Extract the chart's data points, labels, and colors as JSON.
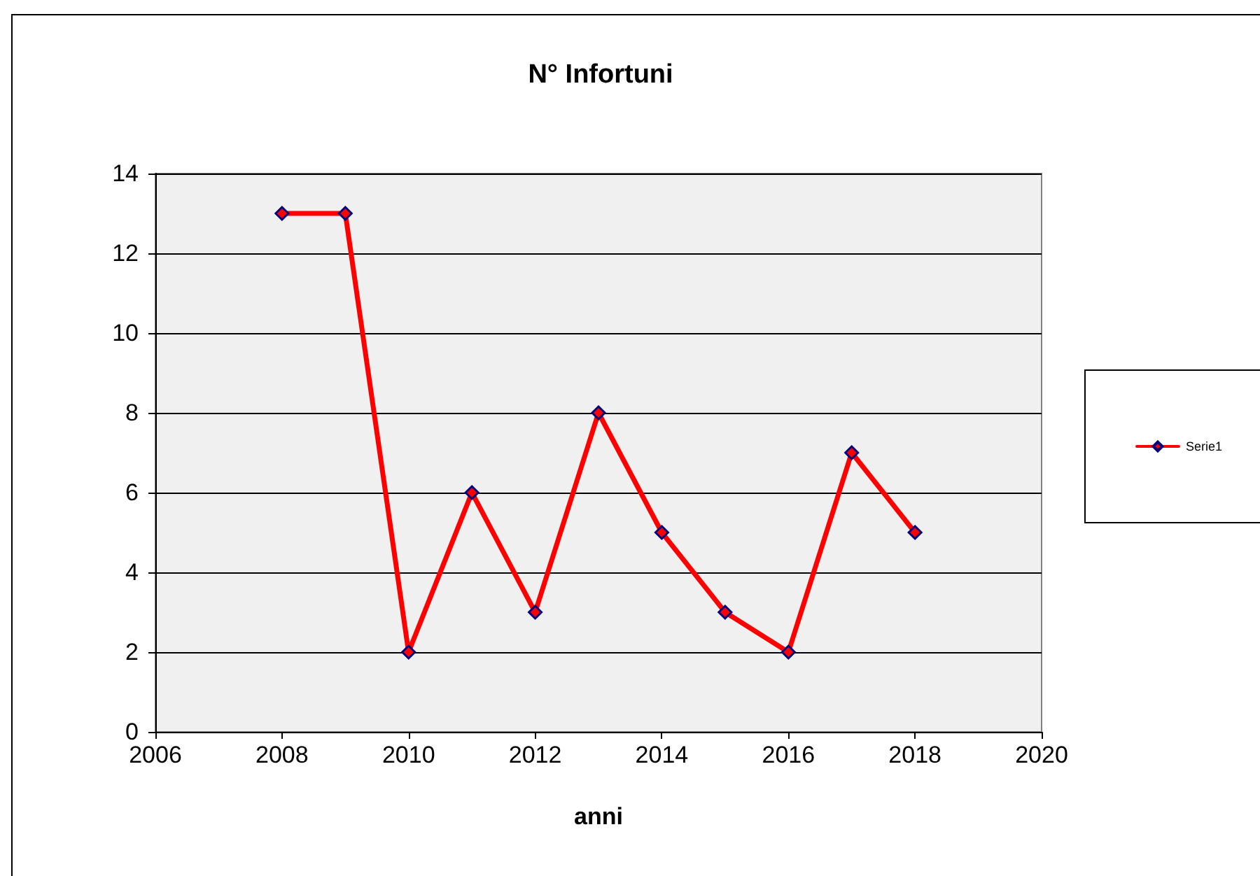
{
  "chart_data": {
    "type": "line",
    "title": "N° Infortuni",
    "xlabel": "anni",
    "x": [
      2008,
      2009,
      2010,
      2011,
      2012,
      2013,
      2014,
      2015,
      2016,
      2017,
      2018
    ],
    "series": [
      {
        "name": "Serie1",
        "color": "#ff0000",
        "values": [
          13,
          13,
          2,
          6,
          3,
          8,
          5,
          3,
          2,
          7,
          5
        ]
      }
    ],
    "xlim": [
      2006,
      2020
    ],
    "xticks": [
      2006,
      2008,
      2010,
      2012,
      2014,
      2016,
      2018,
      2020
    ],
    "ylim": [
      0,
      14
    ],
    "yticks": [
      0,
      2,
      4,
      6,
      8,
      10,
      12,
      14
    ],
    "grid": "y",
    "legend": "right",
    "marker": "diamond",
    "line_style": "solid"
  }
}
